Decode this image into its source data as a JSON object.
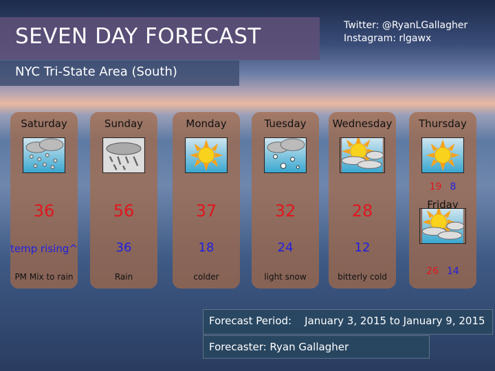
{
  "header": {
    "title": "SEVEN DAY FORECAST",
    "subtitle": "NYC Tri-State Area (South)",
    "twitter": "Twitter: @RyanLGallagher",
    "instagram": "Instagram: rlgawx"
  },
  "days": [
    {
      "name": "Saturday",
      "icon": "snow-rain-mix-icon",
      "high": "36",
      "low": "temp rising^",
      "desc": "PM Mix to rain"
    },
    {
      "name": "Sunday",
      "icon": "rain-icon",
      "high": "56",
      "low": "36",
      "desc": "Rain"
    },
    {
      "name": "Monday",
      "icon": "sunny-icon",
      "high": "37",
      "low": "18",
      "desc": "colder"
    },
    {
      "name": "Tuesday",
      "icon": "light-snow-icon",
      "high": "32",
      "low": "24",
      "desc": "light snow"
    },
    {
      "name": "Wednesday",
      "icon": "partly-cloudy-icon",
      "high": "28",
      "low": "12",
      "desc": "bitterly cold"
    }
  ],
  "thursday": {
    "name": "Thursday",
    "icon": "sunny-icon",
    "high": "19",
    "low": "8"
  },
  "friday": {
    "name": "Friday",
    "icon": "partly-cloudy-icon",
    "high": "26",
    "low": "14"
  },
  "footer": {
    "period_label": "Forecast Period:",
    "period_value": "January 3, 2015 to January 9, 2015",
    "forecaster": "Forecaster: Ryan Gallagher"
  },
  "colors": {
    "high": "#e0161e",
    "low": "#2020e0",
    "card": "#a56946"
  }
}
